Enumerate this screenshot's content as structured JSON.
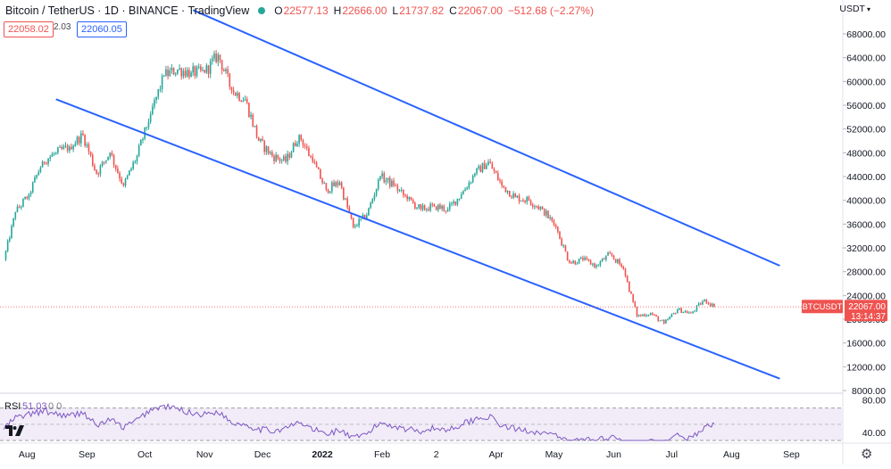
{
  "header": {
    "symbol_title": "Bitcoin / TetherUS · 1D · BINANCE · TradingView",
    "open_label": "O",
    "open_value": "22577.13",
    "high_label": "H",
    "high_value": "22666.00",
    "low_label": "L",
    "low_value": "21737.82",
    "close_label": "C",
    "close_value": "22067.00",
    "change_value": "−512.68 (−2.27%)",
    "status_color": "#26a69a"
  },
  "quote": {
    "bid": "22058.02",
    "spread": "2.03",
    "ask": "22060.05"
  },
  "currency": "USDT",
  "currency_icon": "chevron-down-icon",
  "price_tag": {
    "symbol": "BTCUSDT",
    "price": "22067.00",
    "countdown": "13:14:37"
  },
  "rsi_panel": {
    "label": "RSI",
    "value": "51.03",
    "params": "0 0"
  },
  "colors": {
    "up": "#26a69a",
    "down": "#ef5350",
    "trendline": "#2962ff",
    "rsi_line": "#7e57c2",
    "rsi_band": "#ede7f6"
  },
  "chart_data": {
    "type": "candlestick",
    "title": "",
    "x_ticks": [
      "Aug",
      "Sep",
      "Oct",
      "Nov",
      "Dec",
      "2022",
      "Feb",
      "2",
      "Apr",
      "May",
      "Jun",
      "Jul",
      "Aug",
      "Sep"
    ],
    "y_ticks": [
      "68000.00",
      "64000.00",
      "60000.00",
      "56000.00",
      "52000.00",
      "48000.00",
      "44000.00",
      "40000.00",
      "36000.00",
      "32000.00",
      "28000.00",
      "24000.00",
      "20000.00",
      "16000.00",
      "12000.00",
      "8000.00"
    ],
    "ylim": [
      8000,
      70000
    ],
    "x": [
      "2021-07-20",
      "2021-07-26",
      "2021-08-02",
      "2021-08-09",
      "2021-08-16",
      "2021-08-23",
      "2021-08-30",
      "2021-09-06",
      "2021-09-13",
      "2021-09-20",
      "2021-09-27",
      "2021-10-04",
      "2021-10-11",
      "2021-10-18",
      "2021-10-25",
      "2021-11-01",
      "2021-11-08",
      "2021-11-15",
      "2021-11-22",
      "2021-11-29",
      "2021-12-06",
      "2021-12-13",
      "2021-12-20",
      "2021-12-27",
      "2022-01-03",
      "2022-01-10",
      "2022-01-17",
      "2022-01-24",
      "2022-01-31",
      "2022-02-07",
      "2022-02-14",
      "2022-02-21",
      "2022-02-28",
      "2022-03-07",
      "2022-03-14",
      "2022-03-21",
      "2022-03-28",
      "2022-04-04",
      "2022-04-11",
      "2022-04-18",
      "2022-04-25",
      "2022-05-02",
      "2022-05-09",
      "2022-05-16",
      "2022-05-23",
      "2022-05-30",
      "2022-06-06",
      "2022-06-13",
      "2022-06-20",
      "2022-06-27",
      "2022-07-04",
      "2022-07-11",
      "2022-07-18",
      "2022-07-23"
    ],
    "close": [
      30000,
      38000,
      41000,
      46500,
      48000,
      49000,
      51000,
      44500,
      48000,
      42500,
      47500,
      54500,
      61000,
      62000,
      61500,
      61500,
      64500,
      58500,
      57000,
      50000,
      47500,
      46500,
      51000,
      46500,
      41800,
      43000,
      35500,
      37500,
      44000,
      42500,
      40200,
      38500,
      39000,
      38500,
      41000,
      44500,
      46500,
      42500,
      40500,
      40000,
      38500,
      35500,
      29500,
      30000,
      29000,
      31000,
      28500,
      20500,
      21000,
      19300,
      21600,
      21000,
      23300,
      22067
    ],
    "series": [
      {
        "name": "Upper channel",
        "x": [
          "2021-10-26",
          "2022-08-26"
        ],
        "y": [
          72000,
          29000
        ]
      },
      {
        "name": "Lower channel",
        "x": [
          "2021-08-16",
          "2022-08-26"
        ],
        "y": [
          57000,
          10000
        ]
      }
    ],
    "rsi": {
      "ylim": [
        30,
        85
      ],
      "y_ticks": [
        "80.00",
        "40.00"
      ],
      "upper_band": 70,
      "lower_band": 30,
      "values": [
        45,
        58,
        62,
        66,
        63,
        60,
        65,
        48,
        56,
        46,
        55,
        68,
        72,
        69,
        64,
        62,
        66,
        52,
        50,
        44,
        42,
        45,
        52,
        44,
        38,
        43,
        32,
        38,
        52,
        48,
        44,
        42,
        45,
        43,
        50,
        56,
        60,
        48,
        44,
        42,
        40,
        35,
        28,
        32,
        30,
        35,
        30,
        22,
        28,
        25,
        36,
        33,
        46,
        51
      ]
    }
  }
}
